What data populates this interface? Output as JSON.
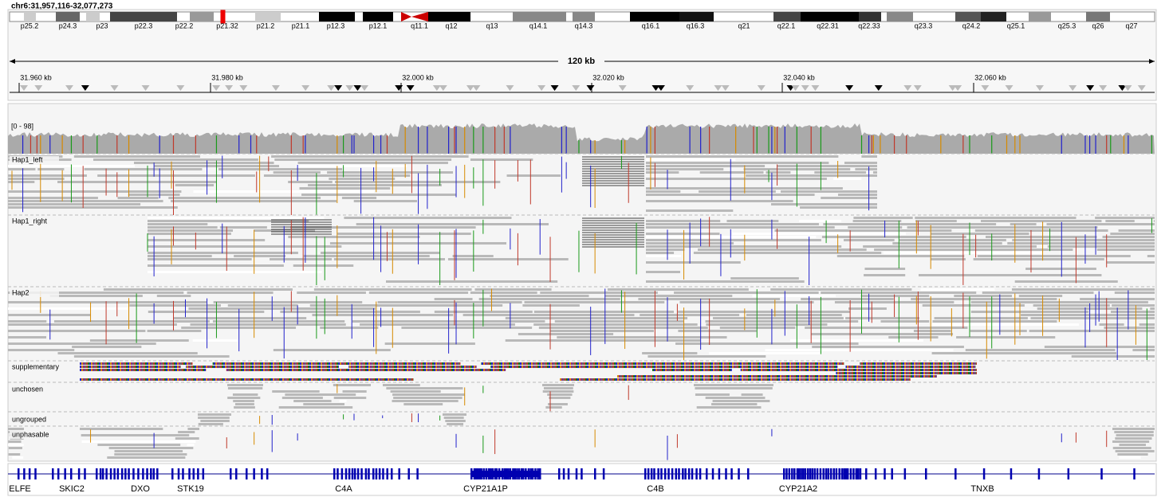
{
  "locus": "chr6:31,957,116-32,077,273",
  "cytobands": [
    "p25.2",
    "p24.3",
    "p23",
    "p22.3",
    "p22.2",
    "p21.32",
    "p21.2",
    "p21.1",
    "p12.3",
    "p12.1",
    "q11.1",
    "q12",
    "q13",
    "q14.1",
    "q14.3",
    "q16.1",
    "q16.3",
    "q21",
    "q22.1",
    "q22.31",
    "q22.33",
    "q23.3",
    "q24.2",
    "q25.1",
    "q25.3",
    "q26",
    "q27"
  ],
  "ruler": {
    "span": "120 kb",
    "ticks": [
      "31.960 kb",
      "31.980 kb",
      "32.000 kb",
      "32.020 kb",
      "32.040 kb",
      "32.060 kb"
    ]
  },
  "coverage": {
    "range": "[0 - 98]"
  },
  "groups": [
    "Hap1_left",
    "Hap1_right",
    "Hap2",
    "supplementary",
    "unchosen",
    "ungrouped",
    "unphasable"
  ],
  "genes": [
    "ELFE",
    "SKIC2",
    "DXO",
    "STK19",
    "C4A",
    "CYP21A1P",
    "C4B",
    "CYP21A2",
    "TNXB"
  ]
}
